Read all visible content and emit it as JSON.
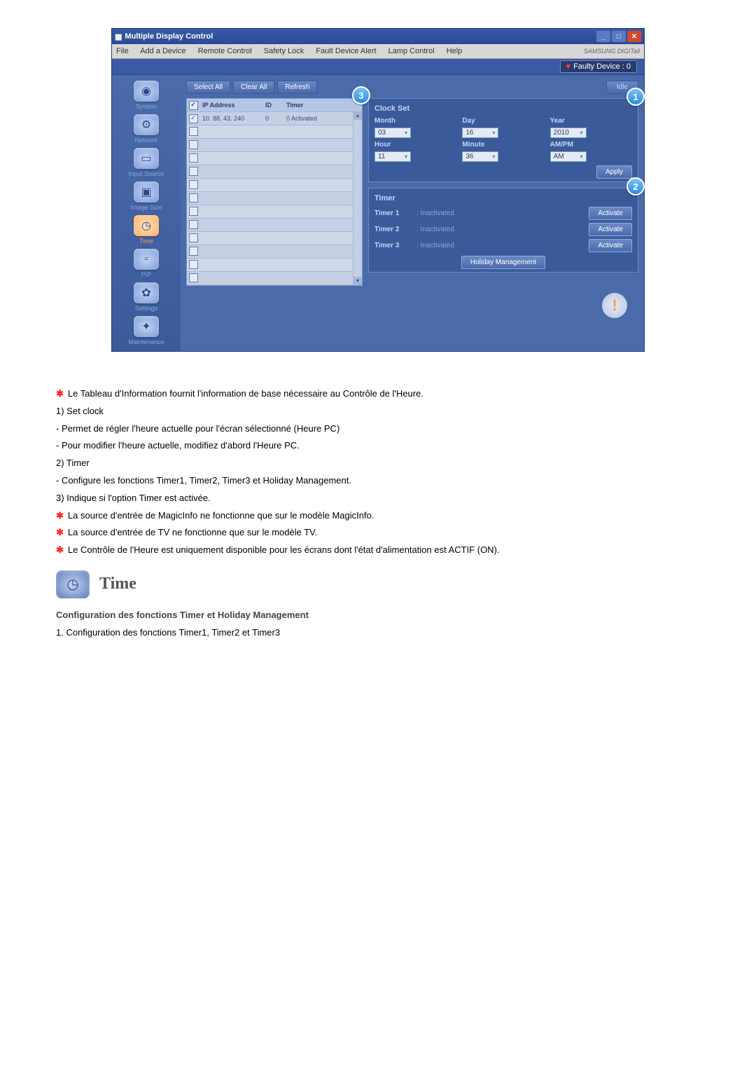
{
  "window": {
    "title": "Multiple Display Control",
    "menus": [
      "File",
      "Add a Device",
      "Remote Control",
      "Safety Lock",
      "Fault Device Alert",
      "Lamp Control",
      "Help"
    ],
    "brand": "SAMSUNG DIGITall",
    "faulty": "Faulty Device : 0"
  },
  "sidebar": {
    "items": [
      {
        "label": "System",
        "glyph": "◉"
      },
      {
        "label": "Network",
        "glyph": "⚙"
      },
      {
        "label": "Input Source",
        "glyph": "▭"
      },
      {
        "label": "Image Size",
        "glyph": "▣"
      },
      {
        "label": "Time",
        "glyph": "◷"
      },
      {
        "label": "PIP",
        "glyph": "▫"
      },
      {
        "label": "Settings",
        "glyph": "✿"
      },
      {
        "label": "Maintenance",
        "glyph": "✦"
      }
    ],
    "active": 4
  },
  "toolbar": {
    "select_all": "Select All",
    "clear_all": "Clear All",
    "refresh": "Refresh",
    "status": "Idle"
  },
  "table": {
    "headers": {
      "ip": "IP Address",
      "id": "ID",
      "timer": "Timer"
    },
    "rows": [
      {
        "checked": true,
        "ip": "10. 88. 43. 240",
        "id": "0",
        "timer": "0 Activated"
      },
      {
        "checked": false,
        "ip": "",
        "id": "",
        "timer": ""
      },
      {
        "checked": false,
        "ip": "",
        "id": "",
        "timer": ""
      },
      {
        "checked": false,
        "ip": "",
        "id": "",
        "timer": ""
      },
      {
        "checked": false,
        "ip": "",
        "id": "",
        "timer": ""
      },
      {
        "checked": false,
        "ip": "",
        "id": "",
        "timer": ""
      },
      {
        "checked": false,
        "ip": "",
        "id": "",
        "timer": ""
      },
      {
        "checked": false,
        "ip": "",
        "id": "",
        "timer": ""
      },
      {
        "checked": false,
        "ip": "",
        "id": "",
        "timer": ""
      },
      {
        "checked": false,
        "ip": "",
        "id": "",
        "timer": ""
      },
      {
        "checked": false,
        "ip": "",
        "id": "",
        "timer": ""
      },
      {
        "checked": false,
        "ip": "",
        "id": "",
        "timer": ""
      },
      {
        "checked": false,
        "ip": "",
        "id": "",
        "timer": ""
      }
    ]
  },
  "clock": {
    "title": "Clock Set",
    "labels": {
      "month": "Month",
      "day": "Day",
      "year": "Year",
      "hour": "Hour",
      "minute": "Minute",
      "ampm": "AM/PM"
    },
    "values": {
      "month": "03",
      "day": "16",
      "year": "2010",
      "hour": "11",
      "minute": "36",
      "ampm": "AM"
    },
    "apply": "Apply"
  },
  "timer": {
    "title": "Timer",
    "rows": [
      {
        "name": "Timer 1",
        "status": ": Inactivated",
        "btn": "Activate"
      },
      {
        "name": "Timer 2",
        "status": ": Inactivated",
        "btn": "Activate"
      },
      {
        "name": "Timer 3",
        "status": ": Inactivated",
        "btn": "Activate"
      }
    ],
    "holiday": "Holiday Management"
  },
  "callouts": {
    "1": "1",
    "2": "2",
    "3": "3"
  },
  "doc": {
    "bullet1": "Le Tableau d'Information fournit l'information de base nécessaire au Contrôle de l'Heure.",
    "n1": "1)  Set clock",
    "n1a": "-  Permet de régler l'heure actuelle pour l'écran sélectionné (Heure PC)",
    "n1b": "-  Pour modifier l'heure actuelle, modifiez d'abord l'Heure PC.",
    "n2": "2)  Timer",
    "n2a": "-  Configure les fonctions Timer1, Timer2, Timer3 et Holiday Management.",
    "n3": "3)  Indique si l'option Timer est activée.",
    "bullet2": "La source d'entrée de MagicInfo ne fonctionne que sur le modèle MagicInfo.",
    "bullet3": "La source d'entrée de TV ne fonctionne que sur le modèle TV.",
    "bullet4": "Le Contrôle de l'Heure est uniquement disponible pour les écrans dont l'état d'alimentation est ACTIF (ON).",
    "section_title": "Time",
    "subhead": "Configuration des fonctions Timer et Holiday Management",
    "sub1": "1.  Configuration des fonctions Timer1, Timer2 et Timer3"
  }
}
